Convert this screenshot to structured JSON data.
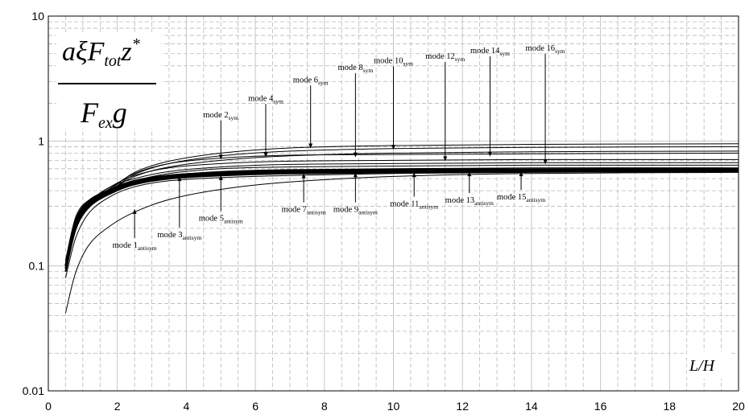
{
  "chart_data": {
    "type": "line",
    "title": "",
    "xlabel": "L/H",
    "ylabel_formula": {
      "numerator": [
        "a",
        "ξ",
        "F",
        "tot",
        "z",
        "*"
      ],
      "denominator": [
        "F",
        "ex",
        "g"
      ]
    },
    "xlim": [
      0,
      20
    ],
    "ylim": [
      0.01,
      10
    ],
    "yscale": "log",
    "grid": true,
    "x_ticks": [
      "0",
      "2",
      "4",
      "6",
      "8",
      "10",
      "12",
      "14",
      "16",
      "18",
      "20"
    ],
    "y_ticks": [
      "0.01",
      "0.1",
      "1",
      "10"
    ],
    "series": [
      {
        "curve": "s2",
        "thick": false,
        "points": [
          [
            0.5,
            0.09
          ],
          [
            0.8,
            0.2
          ],
          [
            1.2,
            0.3
          ],
          [
            1.8,
            0.4
          ],
          [
            2.5,
            0.52
          ],
          [
            3.5,
            0.62
          ],
          [
            5,
            0.7
          ],
          [
            7,
            0.76
          ],
          [
            10,
            0.8
          ],
          [
            14,
            0.82
          ],
          [
            20,
            0.83
          ]
        ]
      },
      {
        "curve": "s4",
        "thick": false,
        "points": [
          [
            0.5,
            0.1
          ],
          [
            0.8,
            0.22
          ],
          [
            1.2,
            0.31
          ],
          [
            1.8,
            0.4
          ],
          [
            2.5,
            0.54
          ],
          [
            3.5,
            0.66
          ],
          [
            5,
            0.76
          ],
          [
            7,
            0.83
          ],
          [
            10,
            0.87
          ],
          [
            14,
            0.89
          ],
          [
            20,
            0.9
          ]
        ]
      },
      {
        "curve": "s6",
        "thick": false,
        "points": [
          [
            0.5,
            0.1
          ],
          [
            0.8,
            0.22
          ],
          [
            1.2,
            0.32
          ],
          [
            1.8,
            0.41
          ],
          [
            2.5,
            0.56
          ],
          [
            3.5,
            0.69
          ],
          [
            5,
            0.8
          ],
          [
            7,
            0.88
          ],
          [
            10,
            0.92
          ],
          [
            14,
            0.94
          ],
          [
            20,
            0.95
          ]
        ]
      },
      {
        "curve": "s8",
        "thick": false,
        "points": [
          [
            0.5,
            0.1
          ],
          [
            0.8,
            0.23
          ],
          [
            1.2,
            0.32
          ],
          [
            1.8,
            0.42
          ],
          [
            2.5,
            0.55
          ],
          [
            3.5,
            0.66
          ],
          [
            5,
            0.73
          ],
          [
            7,
            0.77
          ],
          [
            10,
            0.78
          ],
          [
            14,
            0.79
          ],
          [
            20,
            0.8
          ]
        ]
      },
      {
        "curve": "s10",
        "thick": false,
        "points": [
          [
            0.5,
            0.11
          ],
          [
            0.8,
            0.23
          ],
          [
            1.2,
            0.33
          ],
          [
            1.8,
            0.43
          ],
          [
            2.5,
            0.53
          ],
          [
            3.5,
            0.61
          ],
          [
            5,
            0.66
          ],
          [
            7,
            0.69
          ],
          [
            10,
            0.7
          ],
          [
            14,
            0.71
          ],
          [
            20,
            0.71
          ]
        ]
      },
      {
        "curve": "s12",
        "thick": false,
        "points": [
          [
            0.5,
            0.11
          ],
          [
            0.8,
            0.24
          ],
          [
            1.2,
            0.33
          ],
          [
            1.8,
            0.43
          ],
          [
            2.5,
            0.5
          ],
          [
            3.5,
            0.57
          ],
          [
            5,
            0.62
          ],
          [
            7,
            0.65
          ],
          [
            10,
            0.66
          ],
          [
            14,
            0.67
          ],
          [
            20,
            0.67
          ]
        ]
      },
      {
        "curve": "s14",
        "thick": false,
        "points": [
          [
            0.5,
            0.11
          ],
          [
            0.8,
            0.24
          ],
          [
            1.2,
            0.34
          ],
          [
            1.8,
            0.41
          ],
          [
            2.5,
            0.48
          ],
          [
            3.5,
            0.55
          ],
          [
            5,
            0.6
          ],
          [
            7,
            0.62
          ],
          [
            10,
            0.63
          ],
          [
            14,
            0.64
          ],
          [
            20,
            0.64
          ]
        ]
      },
      {
        "curve": "s16",
        "thick": false,
        "points": [
          [
            0.5,
            0.11
          ],
          [
            0.8,
            0.25
          ],
          [
            1.2,
            0.34
          ],
          [
            1.8,
            0.4
          ],
          [
            2.5,
            0.47
          ],
          [
            3.5,
            0.53
          ],
          [
            5,
            0.57
          ],
          [
            7,
            0.59
          ],
          [
            10,
            0.6
          ],
          [
            14,
            0.61
          ],
          [
            20,
            0.61
          ]
        ]
      },
      {
        "curve": "a1",
        "thick": false,
        "points": [
          [
            0.5,
            0.042
          ],
          [
            0.8,
            0.09
          ],
          [
            1.2,
            0.15
          ],
          [
            1.8,
            0.21
          ],
          [
            2.5,
            0.27
          ],
          [
            3.5,
            0.34
          ],
          [
            5,
            0.41
          ],
          [
            7,
            0.47
          ],
          [
            10,
            0.52
          ],
          [
            14,
            0.55
          ],
          [
            20,
            0.56
          ]
        ]
      },
      {
        "curve": "a3",
        "thick": false,
        "points": [
          [
            0.5,
            0.08
          ],
          [
            0.8,
            0.17
          ],
          [
            1.2,
            0.27
          ],
          [
            1.8,
            0.36
          ],
          [
            2.5,
            0.43
          ],
          [
            3.5,
            0.48
          ],
          [
            5,
            0.51
          ],
          [
            7,
            0.53
          ],
          [
            10,
            0.55
          ],
          [
            14,
            0.56
          ],
          [
            20,
            0.57
          ]
        ]
      },
      {
        "curve": "a5",
        "thick": true,
        "points": [
          [
            0.5,
            0.09
          ],
          [
            0.8,
            0.2
          ],
          [
            1.2,
            0.3
          ],
          [
            1.8,
            0.38
          ],
          [
            2.5,
            0.45
          ],
          [
            3.5,
            0.5
          ],
          [
            5,
            0.53
          ],
          [
            7,
            0.55
          ],
          [
            10,
            0.56
          ],
          [
            14,
            0.57
          ],
          [
            20,
            0.57
          ]
        ]
      },
      {
        "curve": "a7",
        "thick": true,
        "points": [
          [
            0.5,
            0.095
          ],
          [
            0.8,
            0.21
          ],
          [
            1.2,
            0.31
          ],
          [
            1.8,
            0.39
          ],
          [
            2.5,
            0.46
          ],
          [
            3.5,
            0.51
          ],
          [
            5,
            0.54
          ],
          [
            7,
            0.56
          ],
          [
            10,
            0.57
          ],
          [
            14,
            0.575
          ],
          [
            20,
            0.58
          ]
        ]
      },
      {
        "curve": "a9",
        "thick": true,
        "points": [
          [
            0.5,
            0.1
          ],
          [
            0.8,
            0.22
          ],
          [
            1.2,
            0.32
          ],
          [
            1.8,
            0.4
          ],
          [
            2.5,
            0.47
          ],
          [
            3.5,
            0.52
          ],
          [
            5,
            0.55
          ],
          [
            7,
            0.57
          ],
          [
            10,
            0.575
          ],
          [
            14,
            0.58
          ],
          [
            20,
            0.585
          ]
        ]
      },
      {
        "curve": "a11",
        "thick": true,
        "points": [
          [
            0.5,
            0.1
          ],
          [
            0.8,
            0.22
          ],
          [
            1.2,
            0.32
          ],
          [
            1.8,
            0.4
          ],
          [
            2.5,
            0.47
          ],
          [
            3.5,
            0.52
          ],
          [
            5,
            0.55
          ],
          [
            7,
            0.57
          ],
          [
            10,
            0.58
          ],
          [
            14,
            0.585
          ],
          [
            20,
            0.59
          ]
        ]
      },
      {
        "curve": "a13",
        "thick": true,
        "points": [
          [
            0.5,
            0.1
          ],
          [
            0.8,
            0.23
          ],
          [
            1.2,
            0.33
          ],
          [
            1.8,
            0.41
          ],
          [
            2.5,
            0.48
          ],
          [
            3.5,
            0.53
          ],
          [
            5,
            0.56
          ],
          [
            7,
            0.575
          ],
          [
            10,
            0.585
          ],
          [
            14,
            0.59
          ],
          [
            20,
            0.595
          ]
        ]
      },
      {
        "curve": "a15",
        "thick": true,
        "points": [
          [
            0.5,
            0.1
          ],
          [
            0.8,
            0.23
          ],
          [
            1.2,
            0.33
          ],
          [
            1.8,
            0.41
          ],
          [
            2.5,
            0.48
          ],
          [
            3.5,
            0.53
          ],
          [
            5,
            0.56
          ],
          [
            7,
            0.58
          ],
          [
            10,
            0.59
          ],
          [
            14,
            0.595
          ],
          [
            20,
            0.6
          ]
        ]
      }
    ],
    "annotations": [
      {
        "main": "mode 1",
        "sub": "antisym",
        "point": [
          2.5,
          0.29
        ],
        "label_at": [
          2.5,
          0.14
        ],
        "anchor": "middle"
      },
      {
        "main": "mode 2",
        "sub": "sym",
        "point": [
          5.0,
          0.7
        ],
        "label_at": [
          5.0,
          1.55
        ],
        "anchor": "middle"
      },
      {
        "main": "mode 3",
        "sub": "antisym",
        "point": [
          3.8,
          0.53
        ],
        "label_at": [
          3.8,
          0.17
        ],
        "anchor": "middle"
      },
      {
        "main": "mode 4",
        "sub": "sym",
        "point": [
          6.3,
          0.73
        ],
        "label_at": [
          6.3,
          2.1
        ],
        "anchor": "middle"
      },
      {
        "main": "mode 5",
        "sub": "antisym",
        "point": [
          5.0,
          0.54
        ],
        "label_at": [
          5.0,
          0.23
        ],
        "anchor": "middle"
      },
      {
        "main": "mode 6",
        "sub": "sym",
        "point": [
          7.6,
          0.86
        ],
        "label_at": [
          7.6,
          2.95
        ],
        "anchor": "middle"
      },
      {
        "main": "mode 7",
        "sub": "antisym",
        "point": [
          7.4,
          0.56
        ],
        "label_at": [
          7.4,
          0.27
        ],
        "anchor": "middle"
      },
      {
        "main": "mode 8",
        "sub": "sym",
        "point": [
          8.9,
          0.73
        ],
        "label_at": [
          8.9,
          3.7
        ],
        "anchor": "middle"
      },
      {
        "main": "mode 9",
        "sub": "antisym",
        "point": [
          8.9,
          0.57
        ],
        "label_at": [
          8.9,
          0.27
        ],
        "anchor": "middle"
      },
      {
        "main": "mode 10",
        "sub": "sym",
        "point": [
          10.0,
          0.84
        ],
        "label_at": [
          10.0,
          4.2
        ],
        "anchor": "middle"
      },
      {
        "main": "mode 11",
        "sub": "antisym",
        "point": [
          10.6,
          0.57
        ],
        "label_at": [
          10.6,
          0.3
        ],
        "anchor": "middle"
      },
      {
        "main": "mode 12",
        "sub": "sym",
        "point": [
          11.5,
          0.68
        ],
        "label_at": [
          11.5,
          4.55
        ],
        "anchor": "middle"
      },
      {
        "main": "mode 13",
        "sub": "antisym",
        "point": [
          12.2,
          0.58
        ],
        "label_at": [
          12.2,
          0.32
        ],
        "anchor": "middle"
      },
      {
        "main": "mode 14",
        "sub": "sym",
        "point": [
          12.8,
          0.74
        ],
        "label_at": [
          12.8,
          5.05
        ],
        "anchor": "middle"
      },
      {
        "main": "mode 15",
        "sub": "antisym",
        "point": [
          13.7,
          0.58
        ],
        "label_at": [
          13.7,
          0.34
        ],
        "anchor": "middle"
      },
      {
        "main": "mode 16",
        "sub": "sym",
        "point": [
          14.4,
          0.64
        ],
        "label_at": [
          14.4,
          5.3
        ],
        "anchor": "middle"
      }
    ]
  }
}
